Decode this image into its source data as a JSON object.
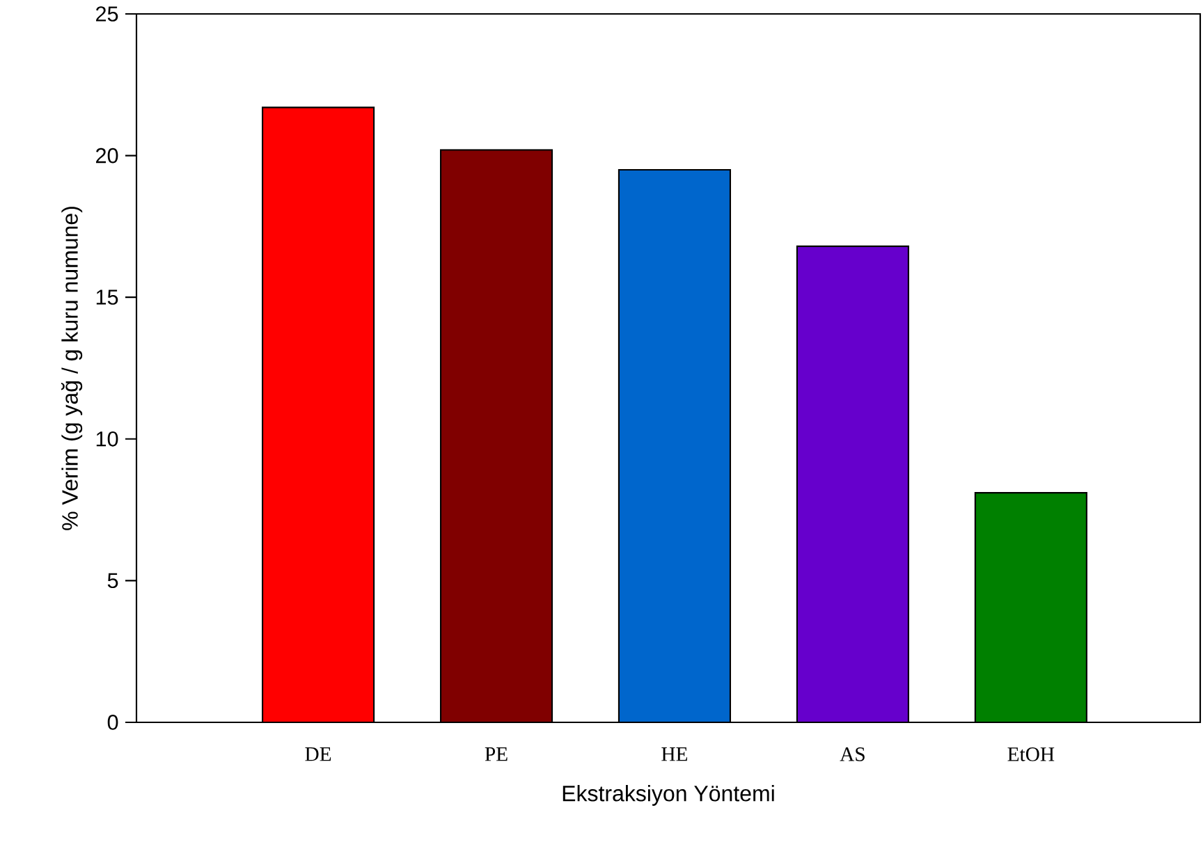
{
  "chart_data": {
    "type": "bar",
    "xlabel": "Ekstraksiyon Yöntemi",
    "ylabel": "% Verim (g yağ / g kuru numune)",
    "categories": [
      "DE",
      "PE",
      "HE",
      "AS",
      "EtOH"
    ],
    "values": [
      21.7,
      20.2,
      19.5,
      16.8,
      8.1
    ],
    "colors": [
      "#ff0000",
      "#800000",
      "#0066cc",
      "#6600cc",
      "#008000"
    ],
    "ylim": [
      0,
      25
    ],
    "yticks": [
      0,
      5,
      10,
      15,
      20,
      25
    ]
  }
}
